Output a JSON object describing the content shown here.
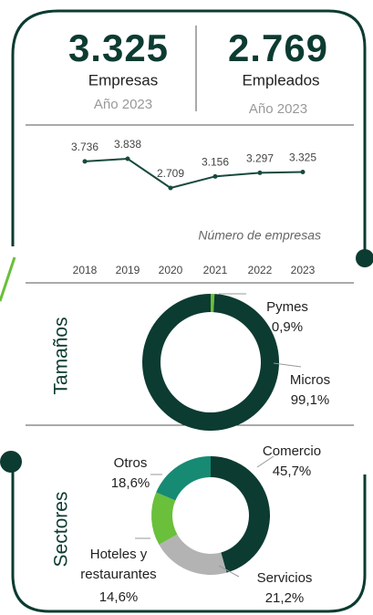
{
  "kpis": [
    {
      "value": "3.325",
      "label": "Empresas",
      "note": "Año 2023"
    },
    {
      "value": "2.769",
      "label": "Empleados",
      "note": "Año 2023"
    }
  ],
  "chart_data": [
    {
      "type": "line",
      "categories": [
        "2018",
        "2019",
        "2020",
        "2021",
        "2022",
        "2023"
      ],
      "values": [
        3736,
        3838,
        2709,
        3156,
        3297,
        3325
      ],
      "value_labels": [
        "3.736",
        "3.838",
        "2.709",
        "3.156",
        "3.297",
        "3.325"
      ],
      "color": "#174a3e",
      "caption": "Número de empresas"
    },
    {
      "type": "pie",
      "title": "Tamaños",
      "categories": [
        "Pymes",
        "Micros"
      ],
      "values": [
        0.9,
        99.1
      ],
      "value_labels": [
        "0,9%",
        "99,1%"
      ],
      "colors": [
        "#6abf3b",
        "#0c3b31"
      ]
    },
    {
      "type": "pie",
      "title": "Sectores",
      "categories": [
        "Comercio",
        "Servicios",
        "Hoteles y restaurantes",
        "Otros"
      ],
      "values": [
        45.7,
        21.2,
        14.6,
        18.6
      ],
      "value_labels": [
        "45,7%",
        "21,2%",
        "14,6%",
        "18,6%"
      ],
      "colors": [
        "#0c3b31",
        "#b3b3b3",
        "#6abf3b",
        "#178a74"
      ]
    }
  ]
}
